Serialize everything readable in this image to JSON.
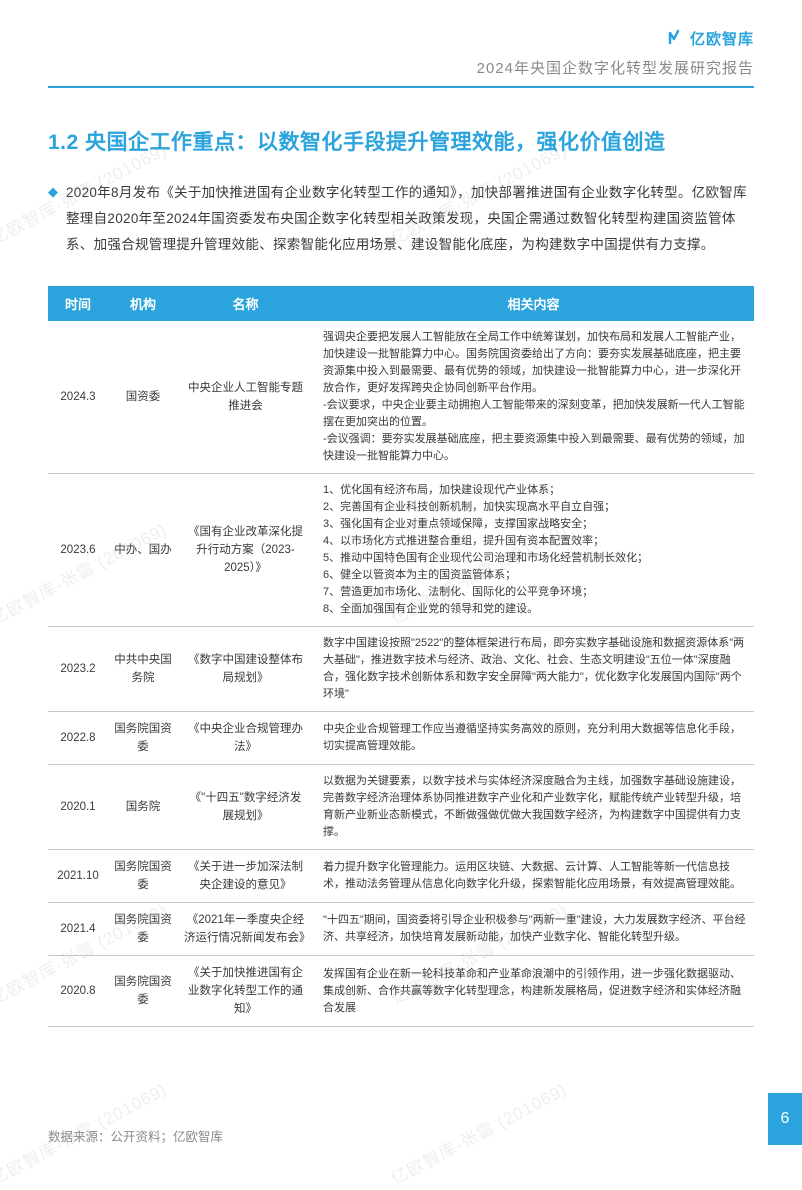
{
  "header": {
    "logo_text": "亿欧智库",
    "subtitle": "2024年央国企数字化转型发展研究报告"
  },
  "section": {
    "title": "1.2 央国企工作重点：以数智化手段提升管理效能，强化价值创造",
    "bullet": "2020年8月发布《关于加快推进国有企业数字化转型工作的通知》，加快部署推进国有企业数字化转型。亿欧智库整理自2020年至2024年国资委发布央国企数字化转型相关政策发现，央国企需通过数智化转型构建国资监管体系、加强合规管理提升管理效能、探索智能化应用场景、建设智能化底座，为构建数字中国提供有力支撑。"
  },
  "table": {
    "headers": {
      "time": "时间",
      "org": "机构",
      "name": "名称",
      "content": "相关内容"
    },
    "rows": [
      {
        "time": "2024.3",
        "org": "国资委",
        "name": "中央企业人工智能专题推进会",
        "content": "强调央企要把发展人工智能放在全局工作中统筹谋划，加快布局和发展人工智能产业，加快建设一批智能算力中心。国务院国资委给出了方向：要夯实发展基础底座，把主要资源集中投入到最需要、最有优势的领域，加快建设一批智能算力中心，进一步深化开放合作，更好发挥跨央企协同创新平台作用。\n-会议要求，中央企业要主动拥抱人工智能带来的深刻变革，把加快发展新一代人工智能摆在更加突出的位置。\n-会议强调：要夯实发展基础底座，把主要资源集中投入到最需要、最有优势的领域，加快建设一批智能算力中心。"
      },
      {
        "time": "2023.6",
        "org": "中办、国办",
        "name": "《国有企业改革深化提升行动方案（2023-2025）》",
        "content": "1、优化国有经济布局，加快建设现代产业体系；\n2、完善国有企业科技创新机制，加快实现高水平自立自强；\n3、强化国有企业对重点领域保障，支撑国家战略安全；\n4、以市场化方式推进整合重组，提升国有资本配置效率；\n5、推动中国特色国有企业现代公司治理和市场化经营机制长效化；\n6、健全以管资本为主的国资监管体系；\n7、营造更加市场化、法制化、国际化的公平竞争环境；\n8、全面加强国有企业党的领导和党的建设。"
      },
      {
        "time": "2023.2",
        "org": "中共中央国务院",
        "name": "《数字中国建设整体布局规划》",
        "content": "数字中国建设按照\"2522\"的整体框架进行布局，即夯实数字基础设施和数据资源体系\"两大基础\"，推进数字技术与经济、政治、文化、社会、生态文明建设\"五位一体\"深度融合，强化数字技术创新体系和数字安全屏障\"两大能力\"，优化数字化发展国内国际\"两个环境\""
      },
      {
        "time": "2022.8",
        "org": "国务院国资委",
        "name": "《中央企业合规管理办法》",
        "content": "中央企业合规管理工作应当遵循坚持实务高效的原则，充分利用大数据等信息化手段，切实提高管理效能。"
      },
      {
        "time": "2020.1",
        "org": "国务院",
        "name": "《\"十四五\"数字经济发展规划》",
        "content": "以数据为关键要素，以数字技术与实体经济深度融合为主线，加强数字基础设施建设，完善数字经济治理体系协同推进数字产业化和产业数字化，赋能传统产业转型升级，培育新产业新业态新模式，不断做强做优做大我国数字经济，为构建数字中国提供有力支撑。"
      },
      {
        "time": "2021.10",
        "org": "国务院国资委",
        "name": "《关于进一步加深法制央企建设的意见》",
        "content": "着力提升数字化管理能力。运用区块链、大数据、云计算、人工智能等新一代信息技术，推动法务管理从信息化向数字化升级，探索智能化应用场景，有效提高管理效能。"
      },
      {
        "time": "2021.4",
        "org": "国务院国资委",
        "name": "《2021年一季度央企经济运行情况新闻发布会》",
        "content": "\"十四五\"期间，国资委将引导企业积极参与\"两新一重\"建设，大力发展数字经济、平台经济、共享经济，加快培育发展新动能，加快产业数字化、智能化转型升级。"
      },
      {
        "time": "2020.8",
        "org": "国务院国资委",
        "name": "《关于加快推进国有企业数字化转型工作的通知》",
        "content": "发挥国有企业在新一轮科技革命和产业革命浪潮中的引领作用，进一步强化数据驱动、集成创新、合作共赢等数字化转型理念，构建新发展格局，促进数字经济和实体经济融合发展"
      }
    ]
  },
  "footer": {
    "source": "数据来源：公开资料；亿欧智库",
    "page": "6"
  },
  "watermark": "亿欧智库-张雷 (201069)"
}
